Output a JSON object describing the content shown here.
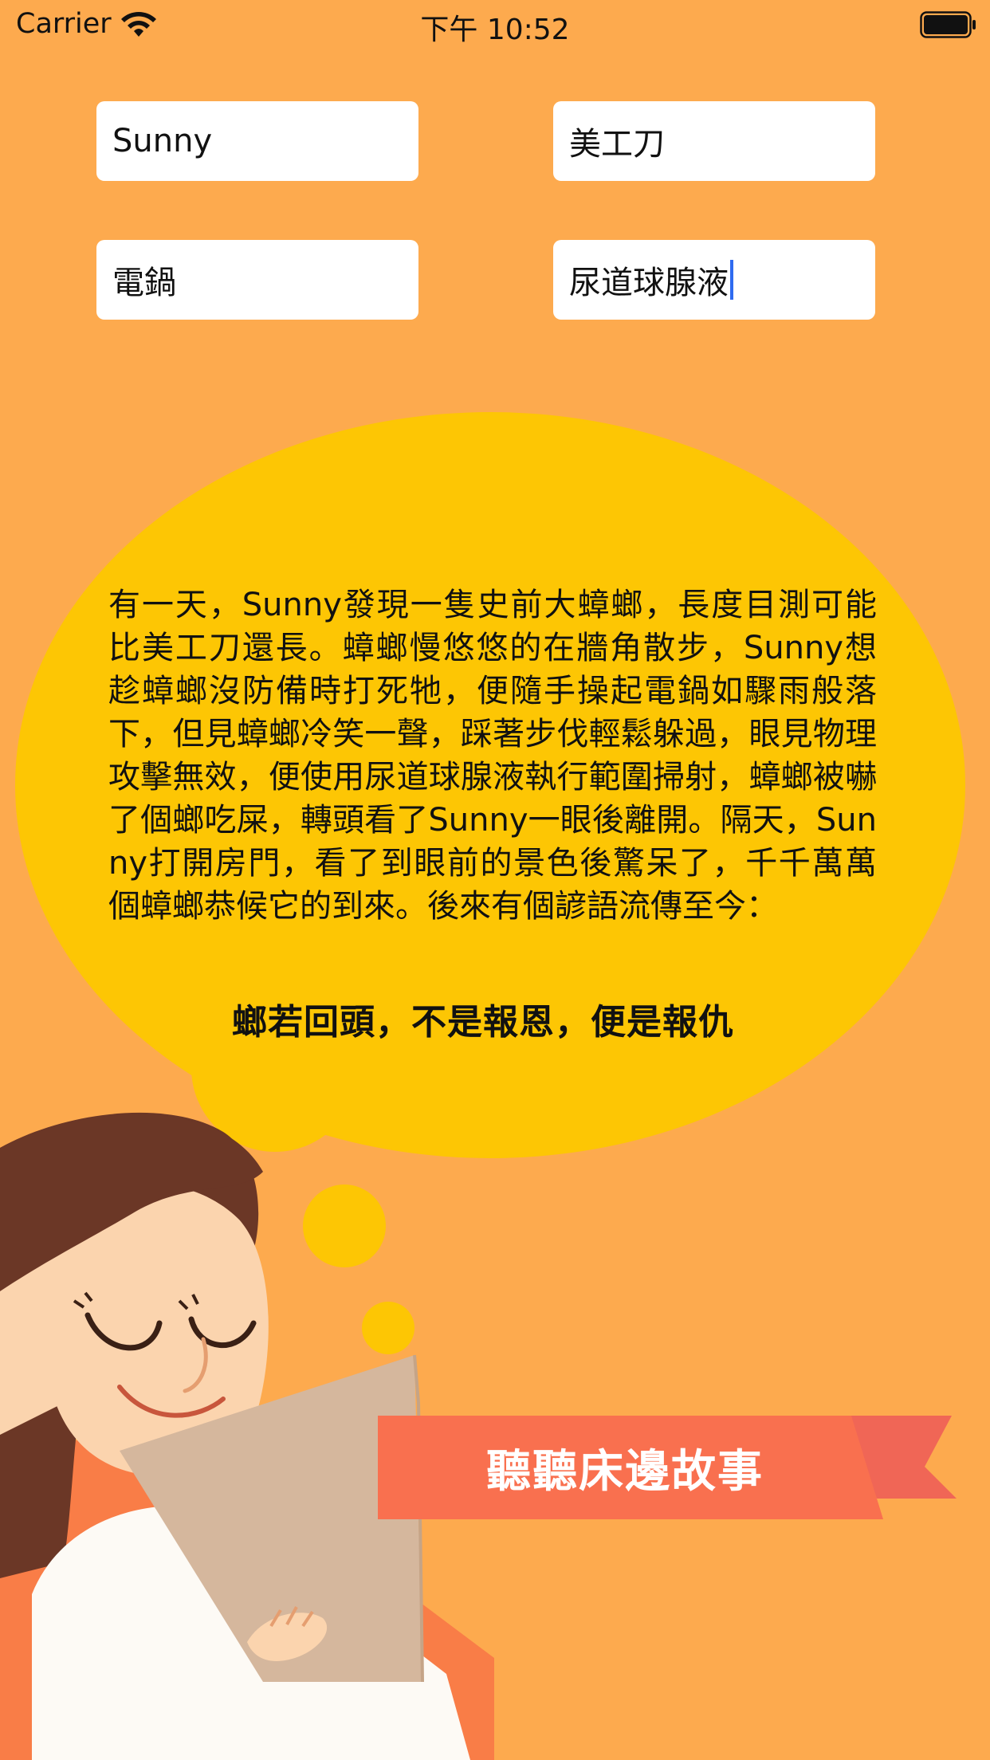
{
  "status_bar": {
    "carrier": "Carrier",
    "time": "下午 10:52",
    "wifi_icon": "wifi-icon",
    "battery_icon": "battery-icon"
  },
  "inputs": {
    "name": "Sunny",
    "item": "美工刀",
    "weapon": "電鍋",
    "liquid": "尿道球腺液"
  },
  "story": {
    "paragraph": "有一天，Sunny發現一隻史前大蟑螂，長度目測可能比美工刀還長。蟑螂慢悠悠的在牆角散步，Sunny想趁蟑螂沒防備時打死牠，便隨手操起電鍋如驟雨般落下，但見蟑螂冷笑一聲，踩著步伐輕鬆躲過，眼見物理攻擊無效，便使用尿道球腺液執行範圍掃射，蟑螂被嚇了個螂吃屎，轉頭看了Sunny一眼後離開。隔天，Sunny打開房門，看了到眼前的景色後驚呆了，千千萬萬個蟑螂恭候它的到來。後來有個諺語流傳至今：",
    "moral": "螂若回頭，不是報恩，便是報仇"
  },
  "actions": {
    "tell_story_label": "聽聽床邊故事"
  },
  "colors": {
    "background": "#FDAA4E",
    "bubble": "#FDC604",
    "ribbon": "#F9704F",
    "ribbon_tail": "#F06656",
    "caret": "#2F6BF0"
  }
}
